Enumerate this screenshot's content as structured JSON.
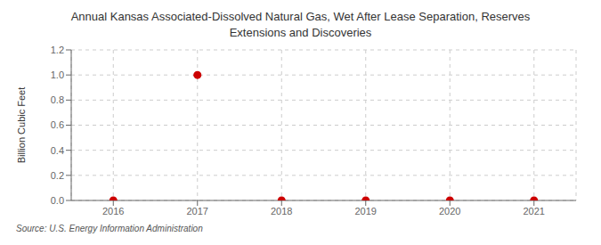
{
  "chart_data": {
    "type": "scatter",
    "title": "Annual Kansas Associated-Dissolved Natural Gas, Wet After Lease Separation, Reserves\nExtensions and Discoveries",
    "ylabel": "Billion Cubic Feet",
    "annotation": "Source: U.S. Energy Information Administration",
    "x": [
      2016,
      2017,
      2018,
      2019,
      2020,
      2021
    ],
    "values": [
      0,
      1.0,
      0,
      0,
      0,
      0
    ],
    "color": "#cc0000",
    "marker": "circle",
    "xlim": [
      2015.5,
      2021.5
    ],
    "xticks": [
      2016,
      2017,
      2018,
      2019,
      2020,
      2021
    ],
    "ylim": [
      0,
      1.2
    ],
    "yticks": [
      {
        "value": 0,
        "label": "0.0"
      },
      0.2,
      0.4,
      0.6,
      0.8,
      {
        "value": 1.0,
        "label": "1.0"
      },
      1.2
    ],
    "grid": true
  }
}
